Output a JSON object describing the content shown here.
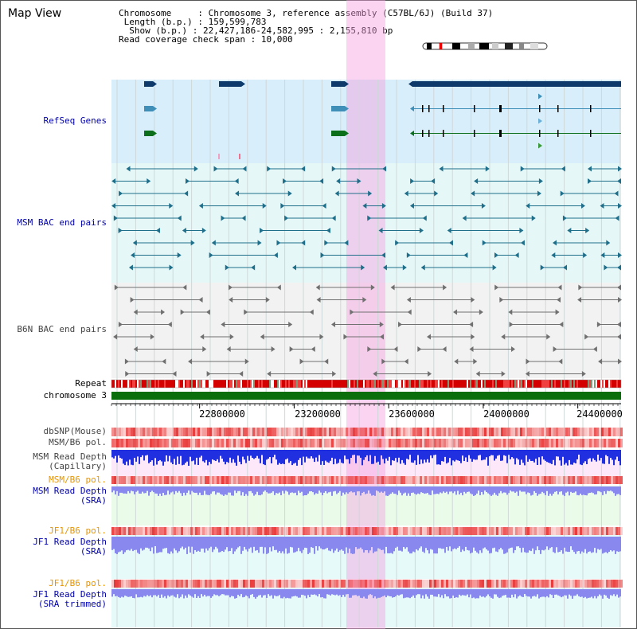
{
  "title": "Map View",
  "info": {
    "chromosome_label": "Chromosome",
    "chromosome_value": "Chromosome 3, reference assembly (C57BL/6J) (Build 37)",
    "length_label": "Length (b.p.)",
    "length_value": "159,599,783",
    "show_label": "Show (b.p.)",
    "show_value": "22,427,186-24,582,995 : 2,155,810 bp",
    "span_label": "Read coverage check span",
    "span_value": "10,000"
  },
  "tracks": {
    "refseq": "RefSeq Genes",
    "msm_bac": "MSM BAC end pairs",
    "b6n_bac": "B6N BAC end pairs",
    "repeat": "Repeat",
    "chromosome": "chromosome 3",
    "dbsnp": "dbSNP(Mouse)",
    "msm_b6_pol_1": "MSM/B6 pol.",
    "msm_depth_cap": "MSM Read Depth\n(Capillary)",
    "msm_b6_pol_2": "MSM/B6 pol.",
    "msm_depth_sra": "MSM Read Depth\n(SRA)",
    "jf1_b6_pol_1": "JF1/B6 pol.",
    "jf1_depth_sra": "JF1 Read Depth\n(SRA)",
    "jf1_b6_pol_2": "JF1/B6 pol.",
    "jf1_depth_trim": "JF1 Read Depth\n(SRA trimmed)"
  },
  "axis": {
    "ticks": [
      "22800000",
      "23200000",
      "23600000",
      "24000000",
      "24400000"
    ],
    "start": 22427186,
    "end": 24582995
  },
  "colors": {
    "highlight": "#f5a0e1",
    "refseq_bg": "#d8eefa",
    "bac_bg": "#e6f7f7",
    "gene_dark": "#0d3a6b",
    "gene_mid": "#3f8fb8",
    "gene_green": "#0a6e1a",
    "bac_msm": "#1f6f8b",
    "bac_b6n": "#707070",
    "chrom": "#0a6e0a",
    "snp": "#e83030",
    "depth": "#2030e0",
    "depth_light": "#8888ee"
  }
}
